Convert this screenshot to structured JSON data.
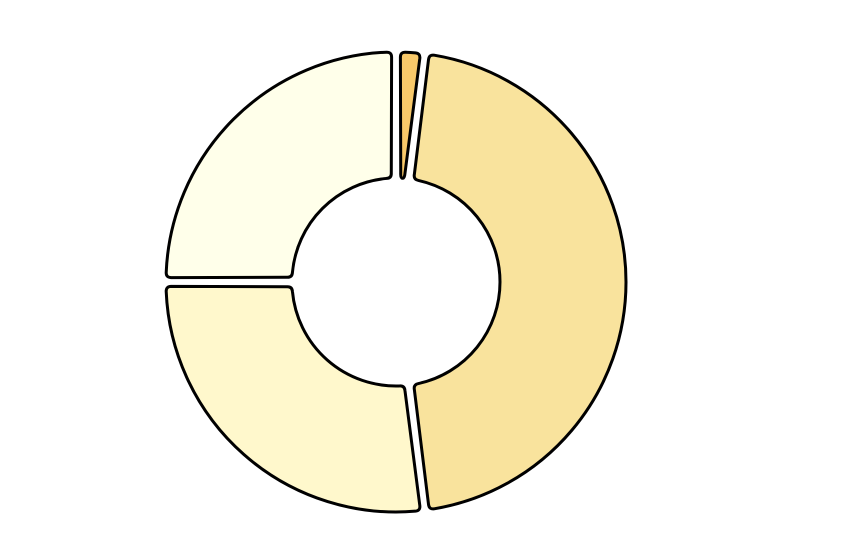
{
  "chart_data": {
    "type": "pie",
    "variant": "donut",
    "title": "",
    "legend": "none",
    "slices": [
      {
        "value": 2,
        "color": "#f8c96a"
      },
      {
        "value": 46,
        "color": "#f9e39d"
      },
      {
        "value": 27,
        "color": "#fff8cc"
      },
      {
        "value": 25,
        "color": "#ffffea"
      }
    ],
    "start_angle_deg": 0,
    "direction": "clockwise",
    "outline_color": "#000000"
  }
}
